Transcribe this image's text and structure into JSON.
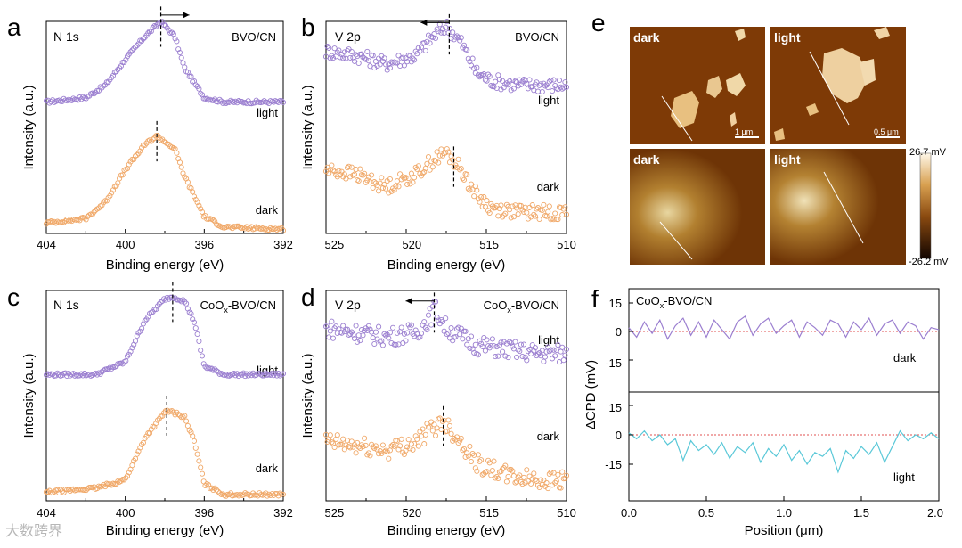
{
  "colors": {
    "purple": "#9b7fd0",
    "orange": "#f0a868",
    "cyan": "#5ac8d8",
    "dashed_ref": "#e05050"
  },
  "panels": {
    "a": {
      "letter": "a",
      "element": "N 1s",
      "sample": "BVO/CN",
      "xlabel": "Binding energy (eV)",
      "ylabel": "Intensity (a.u.)",
      "xticks": [
        "404",
        "400",
        "396",
        "392"
      ],
      "curve1": "light",
      "curve2": "dark"
    },
    "b": {
      "letter": "b",
      "element": "V 2p",
      "sample": "BVO/CN",
      "xlabel": "Binding energy (eV)",
      "ylabel": "Intensity (a.u.)",
      "xticks": [
        "525",
        "520",
        "515",
        "510"
      ],
      "curve1": "light",
      "curve2": "dark"
    },
    "c": {
      "letter": "c",
      "element": "N 1s",
      "sample_prefix": "CoO",
      "sample_sub": "x",
      "sample_suffix": "-BVO/CN",
      "xlabel": "Binding energy (eV)",
      "ylabel": "Intensity (a.u.)",
      "xticks": [
        "404",
        "400",
        "396",
        "392"
      ],
      "curve1": "light",
      "curve2": "dark"
    },
    "d": {
      "letter": "d",
      "element": "V 2p",
      "sample_prefix": "CoO",
      "sample_sub": "x",
      "sample_suffix": "-BVO/CN",
      "xlabel": "Binding energy (eV)",
      "ylabel": "Intensity (a.u.)",
      "xticks": [
        "525",
        "520",
        "515",
        "510"
      ],
      "curve1": "light",
      "curve2": "dark"
    },
    "e": {
      "letter": "e",
      "tl": "dark",
      "tr": "light",
      "bl": "dark",
      "br": "light",
      "scale_tl": "1 μm",
      "scale_tr": "0.5 μm",
      "cbar_max": "26.7 mV",
      "cbar_min": "-26.2 mV"
    },
    "f": {
      "letter": "f",
      "sample_prefix": "CoO",
      "sample_sub": "x",
      "sample_suffix": "-BVO/CN",
      "xlabel": "Position (μm)",
      "ylabel": "ΔCPD (mV)",
      "xticks": [
        "0.0",
        "0.5",
        "1.0",
        "1.5",
        "2.0"
      ],
      "top_label": "dark",
      "bottom_label": "light",
      "top_yticks": [
        "15",
        "0",
        "-15"
      ],
      "bottom_yticks": [
        "15",
        "0",
        "-15",
        ""
      ]
    }
  },
  "watermark": "大数跨界",
  "chart_data": [
    {
      "type": "scatter",
      "title": "N 1s",
      "xlabel": "Binding energy (eV)",
      "ylabel": "Intensity (a.u.)",
      "xlim": [
        404,
        392
      ],
      "annotation": "BVO/CN",
      "series": [
        {
          "name": "light",
          "peak_ev": 398.2,
          "x": [
            404,
            402,
            401,
            400,
            399,
            398.2,
            397.5,
            397,
            396,
            395,
            392
          ],
          "y": [
            0.62,
            0.64,
            0.7,
            0.82,
            0.93,
            1.0,
            0.93,
            0.78,
            0.64,
            0.62,
            0.62
          ]
        },
        {
          "name": "dark",
          "peak_ev": 398.4,
          "x": [
            404,
            402,
            401,
            400,
            399,
            398.4,
            397.5,
            397,
            396,
            395,
            392
          ],
          "y": [
            0.05,
            0.07,
            0.15,
            0.3,
            0.42,
            0.46,
            0.4,
            0.27,
            0.08,
            0.03,
            0.02
          ]
        }
      ]
    },
    {
      "type": "scatter",
      "title": "V 2p",
      "xlabel": "Binding energy (eV)",
      "ylabel": "Intensity (a.u.)",
      "xlim": [
        526,
        510
      ],
      "annotation": "BVO/CN",
      "series": [
        {
          "name": "light",
          "peak_ev": 517.8,
          "x": [
            526,
            524,
            522,
            520,
            519,
            518,
            517,
            516,
            515,
            513,
            510
          ],
          "y": [
            0.86,
            0.84,
            0.8,
            0.84,
            0.92,
            0.98,
            0.9,
            0.76,
            0.72,
            0.7,
            0.7
          ]
        },
        {
          "name": "dark",
          "peak_ev": 517.5,
          "x": [
            526,
            524,
            522,
            520,
            519,
            518,
            517,
            516,
            515,
            513,
            510
          ],
          "y": [
            0.3,
            0.28,
            0.22,
            0.28,
            0.34,
            0.38,
            0.3,
            0.18,
            0.12,
            0.1,
            0.1
          ]
        }
      ]
    },
    {
      "type": "scatter",
      "title": "N 1s",
      "xlabel": "Binding energy (eV)",
      "ylabel": "Intensity (a.u.)",
      "xlim": [
        404,
        392
      ],
      "annotation": "CoOx-BVO/CN",
      "series": [
        {
          "name": "light",
          "peak_ev": 397.6,
          "x": [
            404,
            401.5,
            400,
            399,
            398,
            397.6,
            397,
            396.5,
            396,
            395,
            392
          ],
          "y": [
            0.6,
            0.6,
            0.66,
            0.86,
            0.96,
            0.97,
            0.95,
            0.85,
            0.64,
            0.6,
            0.6
          ]
        },
        {
          "name": "dark",
          "peak_ev": 397.9,
          "x": [
            404,
            401.5,
            400,
            399,
            398,
            397.9,
            397,
            396.5,
            396,
            395,
            392
          ],
          "y": [
            0.04,
            0.06,
            0.1,
            0.3,
            0.42,
            0.43,
            0.4,
            0.28,
            0.08,
            0.03,
            0.03
          ]
        }
      ]
    },
    {
      "type": "scatter",
      "title": "V 2p",
      "xlabel": "Binding energy (eV)",
      "ylabel": "Intensity (a.u.)",
      "xlim": [
        526,
        510
      ],
      "annotation": "CoOx-BVO/CN",
      "series": [
        {
          "name": "light",
          "peak_ev": 518.8,
          "x": [
            526,
            524,
            522,
            520,
            519,
            518.8,
            518,
            516,
            514,
            512,
            510
          ],
          "y": [
            0.82,
            0.8,
            0.78,
            0.8,
            0.88,
            0.92,
            0.82,
            0.74,
            0.72,
            0.7,
            0.7
          ]
        },
        {
          "name": "dark",
          "peak_ev": 518.2,
          "x": [
            526,
            524,
            522,
            520,
            519,
            518.2,
            517,
            516,
            514,
            512,
            510
          ],
          "y": [
            0.28,
            0.26,
            0.24,
            0.28,
            0.34,
            0.38,
            0.28,
            0.18,
            0.12,
            0.1,
            0.1
          ]
        }
      ]
    },
    {
      "type": "line",
      "title": "",
      "xlabel": "Position (μm)",
      "ylabel": "ΔCPD (mV)",
      "xlim": [
        0,
        2.0
      ],
      "ylim": [
        -20,
        18
      ],
      "annotation": "CoOx-BVO/CN",
      "series": [
        {
          "name": "dark",
          "x": [
            0.0,
            0.05,
            0.1,
            0.15,
            0.2,
            0.25,
            0.3,
            0.35,
            0.4,
            0.45,
            0.5,
            0.55,
            0.6,
            0.65,
            0.7,
            0.75,
            0.8,
            0.85,
            0.9,
            0.95,
            1.0,
            1.05,
            1.1,
            1.15,
            1.2,
            1.25,
            1.3,
            1.35,
            1.4,
            1.45,
            1.5,
            1.55,
            1.6,
            1.65,
            1.7,
            1.75,
            1.8,
            1.85,
            1.9,
            1.95,
            2.0
          ],
          "y": [
            2,
            -3,
            5,
            -1,
            6,
            -4,
            3,
            7,
            -2,
            5,
            -3,
            6,
            1,
            -4,
            5,
            8,
            -2,
            4,
            7,
            -1,
            3,
            6,
            -3,
            5,
            2,
            -2,
            6,
            4,
            -3,
            5,
            1,
            7,
            -2,
            4,
            6,
            -1,
            5,
            3,
            -4,
            2,
            1
          ]
        },
        {
          "name": "light",
          "x": [
            0.0,
            0.05,
            0.1,
            0.15,
            0.2,
            0.25,
            0.3,
            0.35,
            0.4,
            0.45,
            0.5,
            0.55,
            0.6,
            0.65,
            0.7,
            0.75,
            0.8,
            0.85,
            0.9,
            0.95,
            1.0,
            1.05,
            1.1,
            1.15,
            1.2,
            1.25,
            1.3,
            1.35,
            1.4,
            1.45,
            1.5,
            1.55,
            1.6,
            1.65,
            1.7,
            1.75,
            1.8,
            1.85,
            1.9,
            1.95,
            2.0
          ],
          "y": [
            1,
            -2,
            2,
            -3,
            0,
            -5,
            -2,
            -13,
            -3,
            -8,
            -5,
            -10,
            -4,
            -12,
            -6,
            -9,
            -4,
            -14,
            -7,
            -11,
            -5,
            -13,
            -8,
            -15,
            -9,
            -11,
            -7,
            -19,
            -8,
            -12,
            -6,
            -10,
            -4,
            -14,
            -6,
            2,
            -3,
            0,
            -2,
            1,
            -2
          ]
        }
      ]
    }
  ]
}
